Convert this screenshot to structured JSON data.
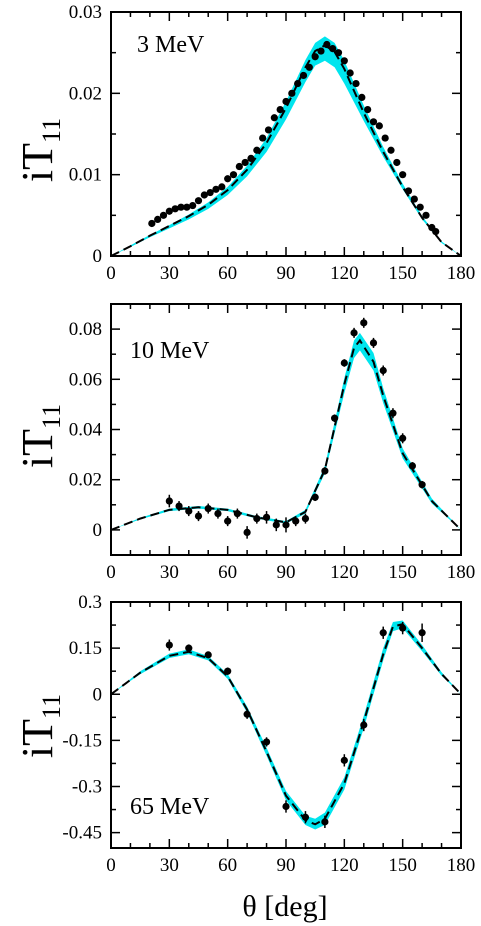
{
  "xlabel": "θ  [deg]",
  "ylabel": "iT",
  "ylabel_subscript": "11",
  "band_color": "#00e5ee",
  "curve_color": "#000000",
  "point_color": "#000000",
  "chart_data": [
    {
      "type": "line",
      "label": "3 MeV",
      "xlim": [
        0,
        180
      ],
      "ylim": [
        0,
        0.03
      ],
      "xticks": [
        0,
        30,
        60,
        90,
        120,
        150,
        180
      ],
      "xtick_labels": [
        "0",
        "30",
        "60",
        "90",
        "120",
        "150",
        "180"
      ],
      "yticks": [
        0,
        0.01,
        0.02,
        0.03
      ],
      "ytick_labels": [
        "0",
        "0.01",
        "0.02",
        "0.03"
      ],
      "band_lower": {
        "x": [
          0,
          10,
          20,
          30,
          40,
          50,
          60,
          70,
          80,
          90,
          100,
          105,
          110,
          115,
          120,
          130,
          140,
          150,
          160,
          170,
          180
        ],
        "y": [
          0,
          0.0011,
          0.0023,
          0.0034,
          0.0045,
          0.0058,
          0.0075,
          0.0098,
          0.0128,
          0.0168,
          0.0214,
          0.0234,
          0.024,
          0.0232,
          0.0212,
          0.0166,
          0.0122,
          0.0082,
          0.0045,
          0.0016,
          0
        ]
      },
      "band_upper": {
        "x": [
          0,
          10,
          20,
          30,
          40,
          50,
          60,
          70,
          80,
          90,
          100,
          105,
          110,
          115,
          120,
          130,
          140,
          150,
          160,
          170,
          180
        ],
        "y": [
          0,
          0.0013,
          0.0026,
          0.0038,
          0.0051,
          0.0066,
          0.0085,
          0.0111,
          0.0145,
          0.019,
          0.0241,
          0.0262,
          0.027,
          0.0262,
          0.024,
          0.0185,
          0.0134,
          0.0089,
          0.0049,
          0.0018,
          0
        ]
      },
      "curve": {
        "x": [
          0,
          10,
          20,
          30,
          40,
          50,
          60,
          70,
          80,
          90,
          100,
          105,
          110,
          115,
          120,
          130,
          140,
          150,
          160,
          170,
          180
        ],
        "y": [
          0,
          0.0012,
          0.0025,
          0.0037,
          0.0049,
          0.0063,
          0.0081,
          0.0106,
          0.0139,
          0.0182,
          0.0232,
          0.0252,
          0.0259,
          0.0251,
          0.023,
          0.0176,
          0.0128,
          0.0085,
          0.0047,
          0.0017,
          0
        ]
      },
      "points": {
        "x": [
          21,
          24,
          27,
          30,
          33,
          36,
          39,
          42,
          45,
          48,
          51,
          54,
          57,
          60,
          63,
          66,
          69,
          72,
          75,
          78,
          81,
          84,
          87,
          90,
          93,
          96,
          99,
          102,
          105,
          108,
          111,
          114,
          117,
          120,
          123,
          126,
          129,
          132,
          135,
          138,
          141,
          144,
          147,
          150,
          153,
          156,
          159,
          162,
          165,
          167
        ],
        "y": [
          0.004,
          0.0045,
          0.005,
          0.0055,
          0.0058,
          0.006,
          0.006,
          0.0062,
          0.0068,
          0.0075,
          0.0078,
          0.0082,
          0.0085,
          0.0095,
          0.01,
          0.011,
          0.0115,
          0.012,
          0.013,
          0.0145,
          0.0155,
          0.017,
          0.018,
          0.019,
          0.02,
          0.0212,
          0.0222,
          0.0232,
          0.0245,
          0.0252,
          0.026,
          0.0255,
          0.025,
          0.024,
          0.0225,
          0.0212,
          0.0195,
          0.018,
          0.0165,
          0.016,
          0.0145,
          0.013,
          0.0115,
          0.01,
          0.008,
          0.007,
          0.006,
          0.005,
          0.0035,
          0.003
        ],
        "err": [
          0.0002,
          0.0002,
          0.0002,
          0.0002,
          0.0002,
          0.0002,
          0.0002,
          0.0002,
          0.0002,
          0.0002,
          0.0002,
          0.0002,
          0.0002,
          0.0002,
          0.0002,
          0.0002,
          0.0002,
          0.0002,
          0.0002,
          0.0002,
          0.0002,
          0.0002,
          0.0002,
          0.0002,
          0.0002,
          0.0002,
          0.0002,
          0.0002,
          0.0002,
          0.0002,
          0.0002,
          0.0002,
          0.0002,
          0.0002,
          0.0002,
          0.0002,
          0.0002,
          0.0002,
          0.0002,
          0.0002,
          0.0002,
          0.0002,
          0.0002,
          0.0002,
          0.0002,
          0.0002,
          0.0002,
          0.0002,
          0.0003,
          0.0003
        ]
      }
    },
    {
      "type": "line",
      "label": "10 MeV",
      "xlim": [
        0,
        180
      ],
      "ylim": [
        -0.01,
        0.09
      ],
      "xticks": [
        0,
        30,
        60,
        90,
        120,
        150,
        180
      ],
      "xtick_labels": [
        "0",
        "30",
        "60",
        "90",
        "120",
        "150",
        "180"
      ],
      "yticks": [
        0,
        0.02,
        0.04,
        0.06,
        0.08
      ],
      "ytick_labels": [
        "0",
        "0.02",
        "0.04",
        "0.06",
        "0.08"
      ],
      "band_lower": {
        "x": [
          0,
          15,
          30,
          45,
          60,
          75,
          90,
          100,
          110,
          120,
          125,
          128,
          135,
          140,
          150,
          165,
          180
        ],
        "y": [
          0,
          0.0042,
          0.0075,
          0.0085,
          0.0075,
          0.0045,
          0.0025,
          0.0065,
          0.0225,
          0.0545,
          0.0685,
          0.0715,
          0.0635,
          0.0505,
          0.0285,
          0.0105,
          0
        ]
      },
      "band_upper": {
        "x": [
          0,
          15,
          30,
          45,
          60,
          75,
          90,
          100,
          110,
          120,
          125,
          128,
          135,
          140,
          150,
          165,
          180
        ],
        "y": [
          0,
          0.0048,
          0.0085,
          0.0095,
          0.0085,
          0.0055,
          0.0035,
          0.008,
          0.0255,
          0.0605,
          0.0755,
          0.0785,
          0.0705,
          0.0565,
          0.0325,
          0.0125,
          0
        ]
      },
      "curve": {
        "x": [
          0,
          15,
          30,
          45,
          60,
          75,
          90,
          100,
          110,
          120,
          125,
          128,
          135,
          140,
          150,
          165,
          180
        ],
        "y": [
          0,
          0.0045,
          0.008,
          0.009,
          0.008,
          0.005,
          0.003,
          0.0072,
          0.024,
          0.058,
          0.0725,
          0.0755,
          0.067,
          0.0535,
          0.0305,
          0.0115,
          0
        ]
      },
      "points": {
        "x": [
          30,
          35,
          40,
          45,
          50,
          55,
          60,
          65,
          70,
          75,
          80,
          85,
          90,
          95,
          100,
          105,
          110,
          115,
          120,
          125,
          130,
          135,
          140,
          145,
          150,
          155,
          160
        ],
        "y": [
          0.0115,
          0.0095,
          0.0075,
          0.0055,
          0.0085,
          0.0065,
          0.0035,
          0.0065,
          -0.001,
          0.0045,
          0.005,
          0.002,
          0.002,
          0.0035,
          0.0045,
          0.013,
          0.0235,
          0.0445,
          0.0665,
          0.0785,
          0.0825,
          0.0745,
          0.0635,
          0.0465,
          0.0365,
          0.0255,
          0.018
        ],
        "err": [
          0.0025,
          0.002,
          0.002,
          0.002,
          0.002,
          0.002,
          0.002,
          0.002,
          0.0025,
          0.002,
          0.0025,
          0.0025,
          0.003,
          0.002,
          0.002,
          0.0015,
          0.0015,
          0.0015,
          0.0015,
          0.002,
          0.002,
          0.002,
          0.002,
          0.002,
          0.002,
          0.0015,
          0.0015
        ]
      }
    },
    {
      "type": "line",
      "label": "65 MeV",
      "xlim": [
        0,
        180
      ],
      "ylim": [
        -0.5,
        0.3
      ],
      "xticks": [
        0,
        30,
        60,
        90,
        120,
        150,
        180
      ],
      "xtick_labels": [
        "0",
        "30",
        "60",
        "90",
        "120",
        "150",
        "180"
      ],
      "yticks": [
        -0.45,
        -0.3,
        -0.15,
        0,
        0.15,
        0.3
      ],
      "ytick_labels": [
        "-0.45",
        "-0.3",
        "-0.15",
        "0",
        "0.15",
        "0.3"
      ],
      "band_lower": {
        "x": [
          0,
          15,
          30,
          40,
          50,
          60,
          70,
          80,
          90,
          100,
          105,
          110,
          120,
          130,
          140,
          145,
          150,
          160,
          170,
          180
        ],
        "y": [
          0,
          0.065,
          0.118,
          0.13,
          0.11,
          0.05,
          -0.06,
          -0.2,
          -0.345,
          -0.425,
          -0.44,
          -0.425,
          -0.31,
          -0.11,
          0.11,
          0.205,
          0.215,
          0.14,
          0.06,
          0
        ]
      },
      "band_upper": {
        "x": [
          0,
          15,
          30,
          40,
          50,
          60,
          70,
          80,
          90,
          100,
          105,
          110,
          120,
          130,
          140,
          145,
          150,
          160,
          170,
          180
        ],
        "y": [
          0,
          0.075,
          0.132,
          0.146,
          0.124,
          0.066,
          -0.04,
          -0.174,
          -0.315,
          -0.395,
          -0.405,
          -0.385,
          -0.27,
          -0.07,
          0.15,
          0.235,
          0.24,
          0.16,
          0.072,
          0
        ]
      },
      "curve": {
        "x": [
          0,
          15,
          30,
          40,
          50,
          60,
          70,
          80,
          90,
          100,
          105,
          110,
          120,
          130,
          140,
          145,
          150,
          160,
          170,
          180
        ],
        "y": [
          0,
          0.07,
          0.125,
          0.138,
          0.117,
          0.058,
          -0.05,
          -0.187,
          -0.33,
          -0.41,
          -0.423,
          -0.405,
          -0.29,
          -0.09,
          0.13,
          0.22,
          0.228,
          0.15,
          0.066,
          0
        ]
      },
      "points": {
        "x": [
          30,
          40,
          50,
          60,
          70,
          80,
          90,
          100,
          110,
          120,
          130,
          140,
          150,
          160
        ],
        "y": [
          0.16,
          0.15,
          0.128,
          0.075,
          -0.065,
          -0.155,
          -0.365,
          -0.4,
          -0.415,
          -0.215,
          -0.1,
          0.2,
          0.215,
          0.2
        ],
        "err": [
          0.018,
          0.012,
          0.01,
          0.012,
          0.015,
          0.015,
          0.02,
          0.02,
          0.02,
          0.02,
          0.02,
          0.02,
          0.02,
          0.03
        ]
      }
    }
  ]
}
